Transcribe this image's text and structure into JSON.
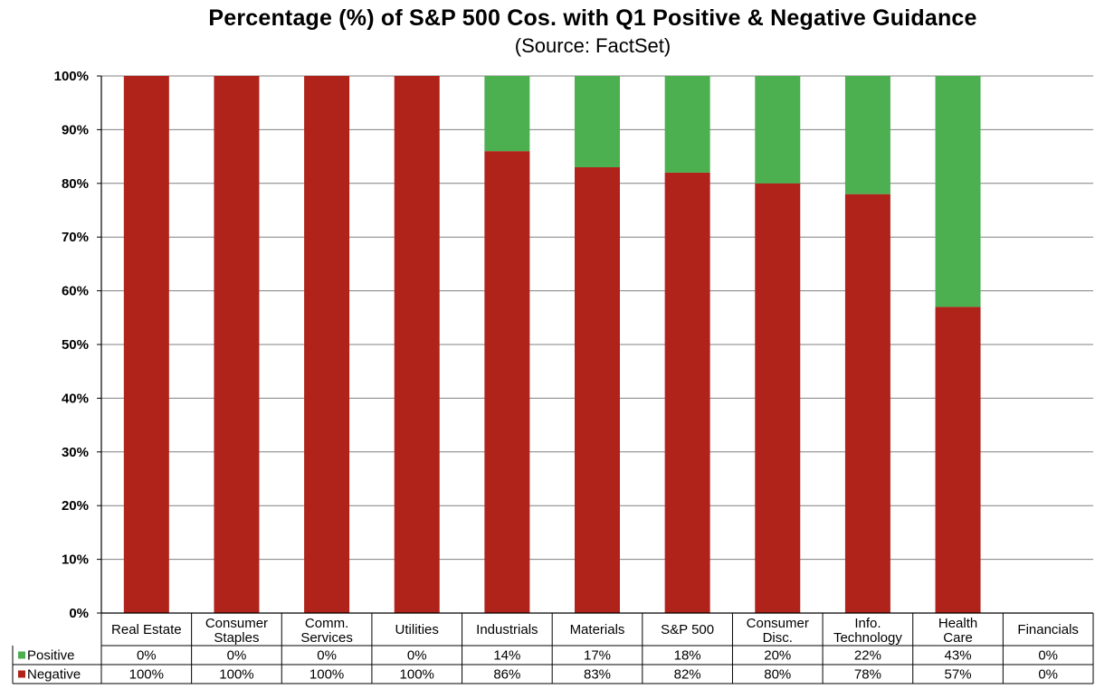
{
  "chart_data": {
    "type": "bar",
    "stacked": true,
    "title": "Percentage (%) of S&P 500 Cos. with Q1 Positive & Negative Guidance",
    "subtitle": "(Source: FactSet)",
    "categories": [
      [
        "Real Estate"
      ],
      [
        "Consumer",
        "Staples"
      ],
      [
        "Comm.",
        "Services"
      ],
      [
        "Utilities"
      ],
      [
        "Industrials"
      ],
      [
        "Materials"
      ],
      [
        "S&P 500"
      ],
      [
        "Consumer",
        "Disc."
      ],
      [
        "Info.",
        "Technology"
      ],
      [
        "Health",
        "Care"
      ],
      [
        "Financials"
      ]
    ],
    "series": [
      {
        "name": "Negative",
        "color": "#B0231A",
        "values": [
          100,
          100,
          100,
          100,
          86,
          83,
          82,
          80,
          78,
          57,
          0
        ],
        "labels": [
          "100%",
          "100%",
          "100%",
          "100%",
          "86%",
          "83%",
          "82%",
          "80%",
          "78%",
          "57%",
          "0%"
        ]
      },
      {
        "name": "Positive",
        "color": "#4CAF50",
        "values": [
          0,
          0,
          0,
          0,
          14,
          17,
          18,
          20,
          22,
          43,
          0
        ],
        "labels": [
          "0%",
          "0%",
          "0%",
          "0%",
          "14%",
          "17%",
          "18%",
          "20%",
          "22%",
          "43%",
          "0%"
        ]
      }
    ],
    "ylim": [
      0,
      100
    ],
    "yticks": [
      "0%",
      "10%",
      "20%",
      "30%",
      "40%",
      "50%",
      "60%",
      "70%",
      "80%",
      "90%",
      "100%"
    ],
    "grid": true,
    "legend": "data-table",
    "table_rows": [
      {
        "key": "Positive",
        "series_index": 1
      },
      {
        "key": "Negative",
        "series_index": 0
      }
    ],
    "gridline_color": "#808080",
    "border_color": "#000000"
  }
}
